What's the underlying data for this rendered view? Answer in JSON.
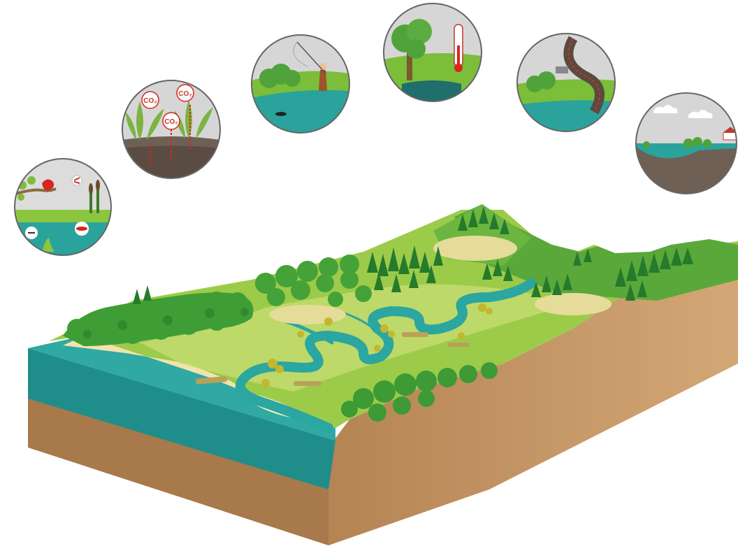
{
  "labels": {
    "co2_a": "CO₂",
    "co2_b": "CO₂",
    "co2_c": "CO₂"
  },
  "icons": {
    "biodiversity": "bird-insect-fish-icon",
    "carbon": "co2-plants-icon",
    "recreation": "angler-icon",
    "temperature": "thermometer-shade-icon",
    "water_quality": "runoff-pipe-icon",
    "flood": "floodplain-icon"
  },
  "colors": {
    "water": "#2a9d9a",
    "water_dark": "#1d7f7d",
    "soil": "#c79a66",
    "soil_dark": "#9b7047",
    "meadow": "#8cc63f",
    "forest": "#3d9a34",
    "sand": "#f1e3ae",
    "sky": "#d8d8d8"
  }
}
